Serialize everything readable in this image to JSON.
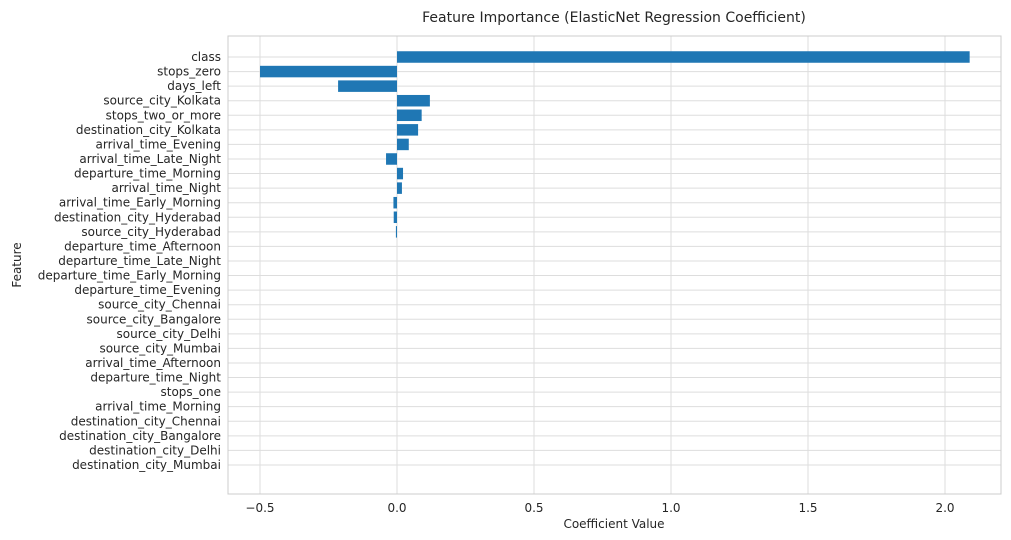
{
  "chart_data": {
    "type": "bar",
    "orientation": "horizontal",
    "title": "Feature Importance (ElasticNet Regression Coefficient)",
    "xlabel": "Coefficient Value",
    "ylabel": "Feature",
    "xlim": [
      -0.62,
      2.22
    ],
    "xticks": [
      -0.5,
      0.0,
      0.5,
      1.0,
      1.5,
      2.0
    ],
    "xtick_labels": [
      "−0.5",
      "0.0",
      "0.5",
      "1.0",
      "1.5",
      "2.0"
    ],
    "grid": true,
    "bar_color": "#1f77b4",
    "categories": [
      "class",
      "stops_zero",
      "days_left",
      "source_city_Kolkata",
      "stops_two_or_more",
      "destination_city_Kolkata",
      "arrival_time_Evening",
      "arrival_time_Late_Night",
      "departure_time_Morning",
      "arrival_time_Night",
      "arrival_time_Early_Morning",
      "destination_city_Hyderabad",
      "source_city_Hyderabad",
      "departure_time_Afternoon",
      "departure_time_Late_Night",
      "departure_time_Early_Morning",
      "departure_time_Evening",
      "source_city_Chennai",
      "source_city_Bangalore",
      "source_city_Delhi",
      "source_city_Mumbai",
      "arrival_time_Afternoon",
      "departure_time_Night",
      "stops_one",
      "arrival_time_Morning",
      "destination_city_Chennai",
      "destination_city_Bangalore",
      "destination_city_Delhi",
      "destination_city_Mumbai"
    ],
    "values": [
      2.09,
      -0.5,
      -0.215,
      0.12,
      0.09,
      0.077,
      0.043,
      -0.04,
      0.022,
      0.018,
      -0.013,
      -0.012,
      -0.004,
      0,
      0,
      0,
      0,
      0,
      0,
      0,
      0,
      0,
      0,
      0,
      0,
      0,
      0,
      0,
      0
    ]
  }
}
